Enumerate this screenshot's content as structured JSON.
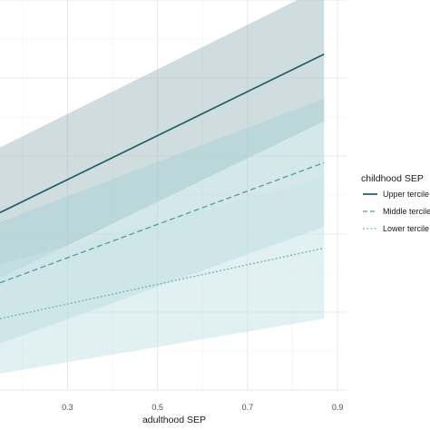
{
  "chart_data": {
    "type": "line",
    "xlabel": "adulthood SEP",
    "ylabel": "",
    "xlim": [
      0.15,
      0.92
    ],
    "ylim": [
      0.0,
      1.0
    ],
    "x_ticks": [
      0.3,
      0.5,
      0.7,
      0.9
    ],
    "x_tick_labels": [
      "0.3",
      "0.5",
      "0.7",
      "0.9"
    ],
    "y_gridlines": [
      0.0,
      0.2,
      0.4,
      0.6,
      0.8,
      1.0
    ],
    "grid": true,
    "legend": {
      "title": "childhood SEP",
      "position": "right",
      "entries": [
        "Upper tercile",
        "Middle tercile",
        "Lower tercile"
      ]
    },
    "series": [
      {
        "name": "Upper tercile",
        "x": [
          0.15,
          0.87
        ],
        "y": [
          0.455,
          0.861
        ],
        "ci_lower": [
          0.287,
          0.689
        ],
        "ci_upper": [
          0.622,
          1.034
        ],
        "color": "#1f5f68",
        "fill": "#9fbcc0",
        "fill_opacity": 0.5,
        "dash": "solid"
      },
      {
        "name": "Middle tercile",
        "x": [
          0.15,
          0.87
        ],
        "y": [
          0.275,
          0.583
        ],
        "ci_lower": [
          0.119,
          0.419
        ],
        "ci_upper": [
          0.431,
          0.747
        ],
        "color": "#4f9aa2",
        "fill": "#a9d2d6",
        "fill_opacity": 0.5,
        "dash": "dashed"
      },
      {
        "name": "Lower tercile",
        "x": [
          0.15,
          0.87
        ],
        "y": [
          0.183,
          0.364
        ],
        "ci_lower": [
          0.042,
          0.183
        ],
        "ci_upper": [
          0.323,
          0.544
        ],
        "color": "#6fb3b9",
        "fill": "#c8e3e6",
        "fill_opacity": 0.55,
        "dash": "dotted"
      }
    ]
  }
}
